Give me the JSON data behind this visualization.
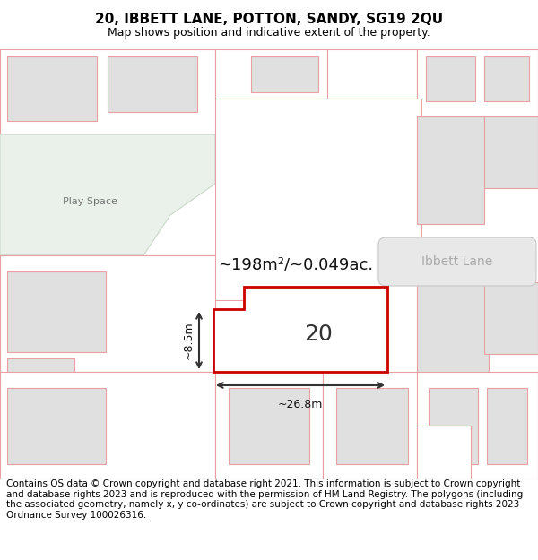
{
  "title_line1": "20, IBBETT LANE, POTTON, SANDY, SG19 2QU",
  "title_line2": "Map shows position and indicative extent of the property.",
  "footer_text": "Contains OS data © Crown copyright and database right 2021. This information is subject to Crown copyright and database rights 2023 and is reproduced with the permission of HM Land Registry. The polygons (including the associated geometry, namely x, y co-ordinates) are subject to Crown copyright and database rights 2023 Ordnance Survey 100026316.",
  "area_label": "~198m²/~0.049ac.",
  "number_label": "20",
  "width_label": "~26.8m",
  "height_label": "~8.5m",
  "road_label": "Ibbett Lane",
  "play_space_label": "Play Space",
  "bg_color": "#ffffff",
  "building_fill": "#e0e0e0",
  "building_stroke": "#e8a0a0",
  "highlight_fill": "#ffffff",
  "highlight_stroke": "#cc0000",
  "play_space_fill": "#eaf0ea",
  "dim_line_color": "#333333",
  "title_fontsize": 11,
  "subtitle_fontsize": 9,
  "footer_fontsize": 7.5
}
